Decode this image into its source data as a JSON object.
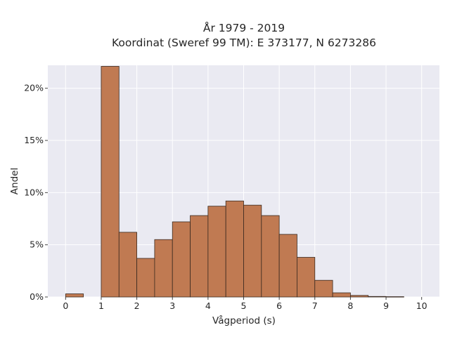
{
  "chart_data": {
    "type": "bar",
    "title_lines": [
      "År 1979 - 2019",
      "Koordinat (Sweref 99 TM): E 373177, N 6273286"
    ],
    "xlabel": "Vågperiod (s)",
    "ylabel": "Andel",
    "bin_width": 0.5,
    "bins": [
      {
        "x": 0.0,
        "value": 0.3
      },
      {
        "x": 0.5,
        "value": 0.0
      },
      {
        "x": 1.0,
        "value": 22.1
      },
      {
        "x": 1.5,
        "value": 6.2
      },
      {
        "x": 2.0,
        "value": 3.7
      },
      {
        "x": 2.5,
        "value": 5.5
      },
      {
        "x": 3.0,
        "value": 7.2
      },
      {
        "x": 3.5,
        "value": 7.8
      },
      {
        "x": 4.0,
        "value": 8.7
      },
      {
        "x": 4.5,
        "value": 9.2
      },
      {
        "x": 5.0,
        "value": 8.8
      },
      {
        "x": 5.5,
        "value": 7.8
      },
      {
        "x": 6.0,
        "value": 6.0
      },
      {
        "x": 6.5,
        "value": 3.8
      },
      {
        "x": 7.0,
        "value": 1.6
      },
      {
        "x": 7.5,
        "value": 0.4
      },
      {
        "x": 8.0,
        "value": 0.15
      },
      {
        "x": 8.5,
        "value": 0.05
      },
      {
        "x": 9.0,
        "value": 0.03
      },
      {
        "x": 9.5,
        "value": 0.0
      }
    ],
    "xlim": [
      -0.5,
      10.5
    ],
    "ylim": [
      0,
      22.2
    ],
    "xticks": [
      0,
      1,
      2,
      3,
      4,
      5,
      6,
      7,
      8,
      9,
      10
    ],
    "xtick_labels": [
      "0",
      "1",
      "2",
      "3",
      "4",
      "5",
      "6",
      "7",
      "8",
      "9",
      "10"
    ],
    "yticks": [
      0,
      5,
      10,
      15,
      20
    ],
    "ytick_labels": [
      "0%",
      "5%",
      "10%",
      "15%",
      "20%"
    ],
    "grid": true,
    "bar_color": "#c07a52",
    "plot_background": "#eaeaf2"
  }
}
